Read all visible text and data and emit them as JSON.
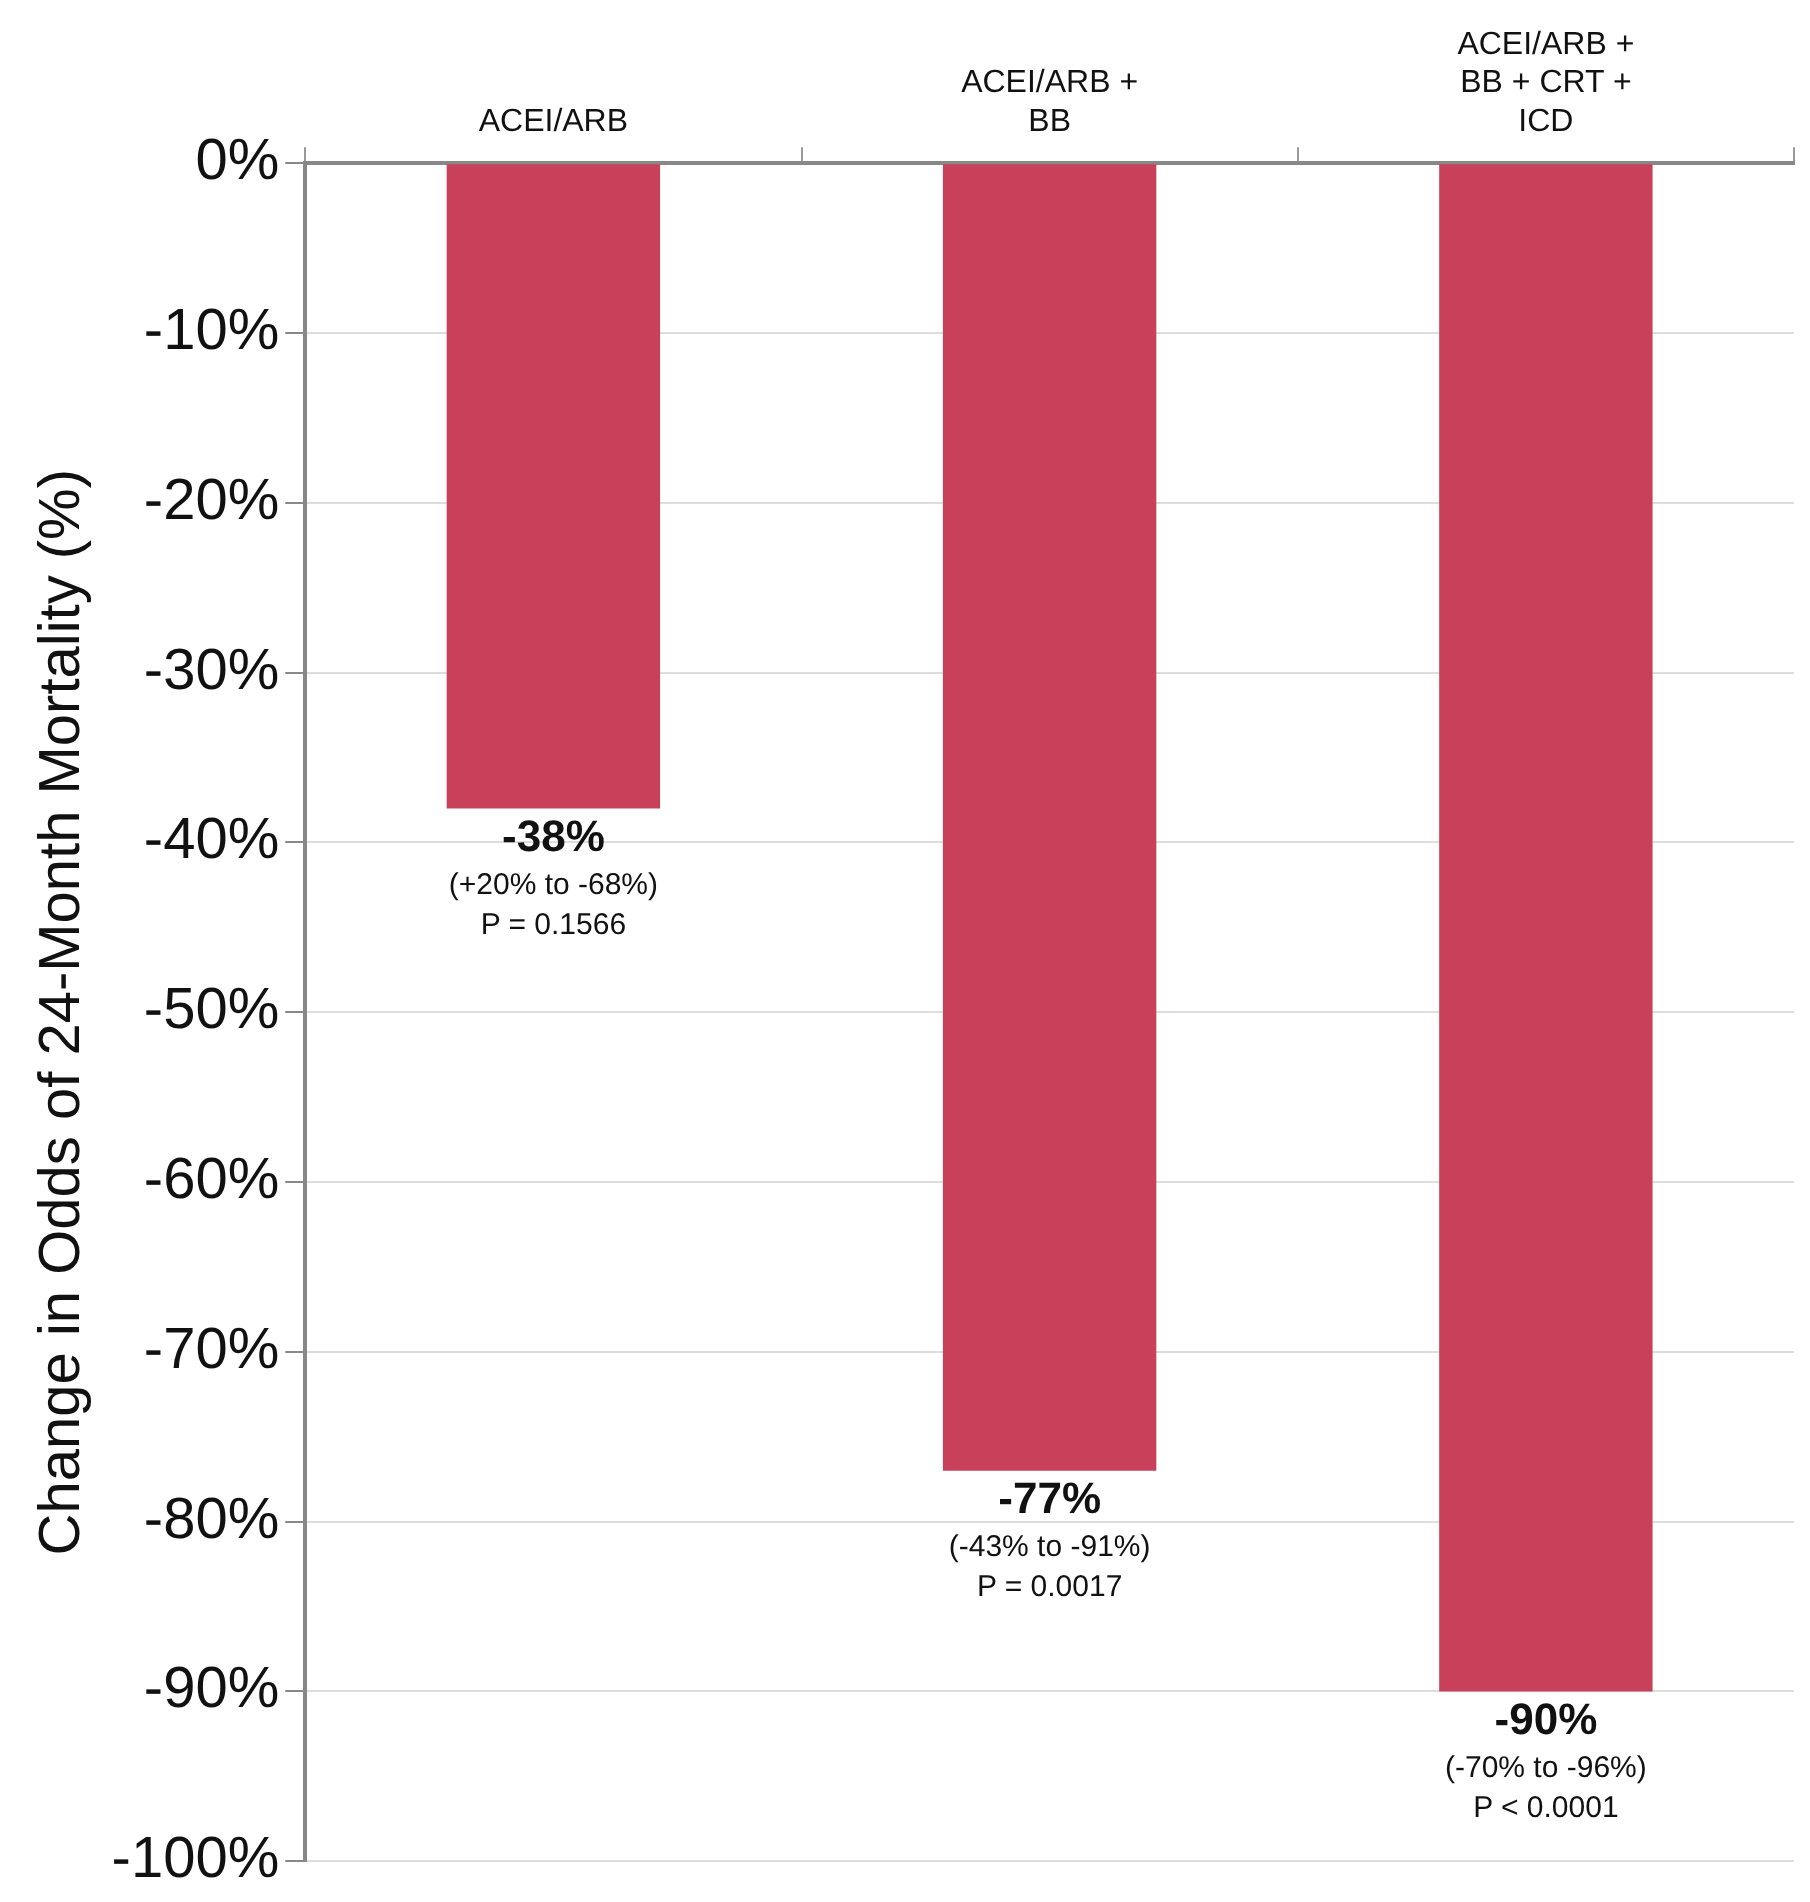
{
  "chart_data": {
    "type": "bar",
    "ylabel": "Change in Odds of 24-Month Mortality (%)",
    "categories": [
      "ACEI/ARB",
      "ACEI/ARB + BB",
      "ACEI/ARB + BB + CRT + ICD"
    ],
    "values": [
      -38,
      -77,
      -90
    ],
    "color": "#c8405a",
    "value_labels": [
      "-38%",
      "-77%",
      "-90%"
    ],
    "ylim": [
      -100,
      0
    ],
    "yticks": [
      {
        "value": -100,
        "label": "-100%"
      },
      {
        "value": -90,
        "label": "-90%"
      },
      {
        "value": -80,
        "label": "-80%"
      },
      {
        "value": -70,
        "label": "-70%"
      },
      {
        "value": -60,
        "label": "-60%"
      },
      {
        "value": -50,
        "label": "-50%"
      },
      {
        "value": -40,
        "label": "-40%"
      },
      {
        "value": -30,
        "label": "-30%"
      },
      {
        "value": -20,
        "label": "-20%"
      },
      {
        "value": -10,
        "label": "-10%"
      },
      {
        "value": 0,
        "label": "0%"
      }
    ],
    "grid": "y",
    "legend": false,
    "annotations": [
      {
        "text": "(+20% to -68%) P = 0.1566",
        "x": "ACEI/ARB",
        "y": -38
      },
      {
        "text": "(-43% to -91%) P = 0.0017",
        "x": "ACEI/ARB + BB",
        "y": -77
      },
      {
        "text": "(-70% to -96%) P < 0.0001",
        "x": "ACEI/ARB + BB + CRT + ICD",
        "y": -90
      }
    ]
  }
}
